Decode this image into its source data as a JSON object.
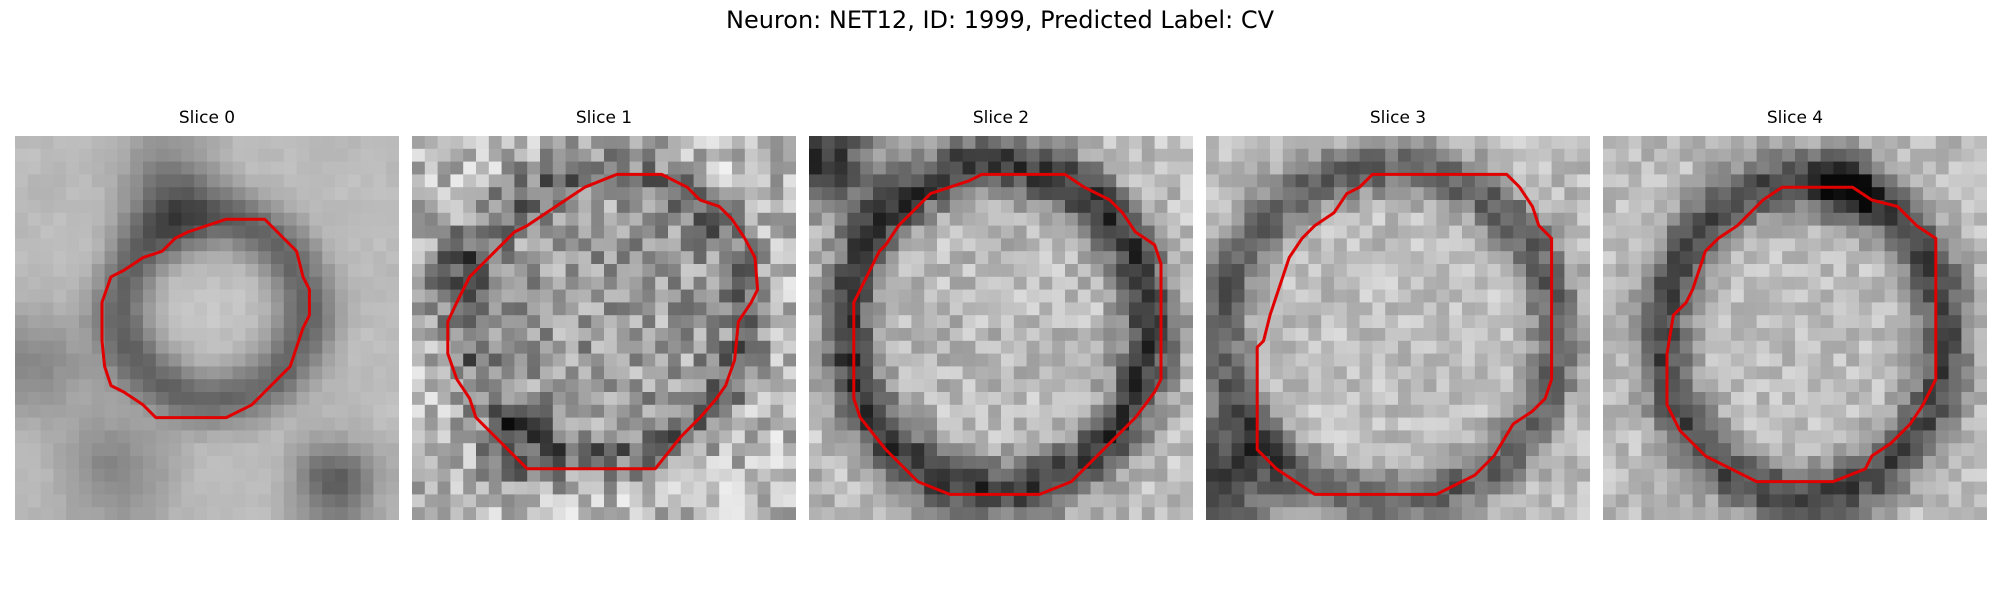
{
  "figure": {
    "title": "Neuron: NET12, ID: 1999, Predicted Label: CV",
    "slices": [
      {
        "label": "Slice 0"
      },
      {
        "label": "Slice 1"
      },
      {
        "label": "Slice 2"
      },
      {
        "label": "Slice 3"
      },
      {
        "label": "Slice 4"
      }
    ],
    "contour_color": "#e00000",
    "colormap": "grayscale"
  }
}
